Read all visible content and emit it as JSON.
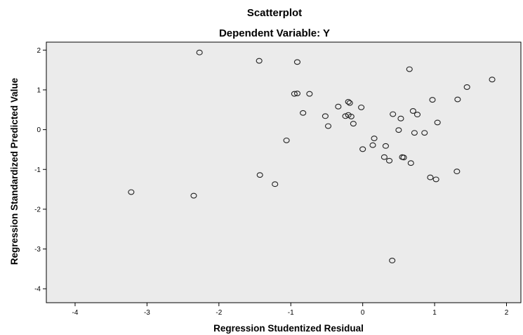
{
  "chart_data": {
    "type": "scatter",
    "title": "Scatterplot",
    "subtitle": "Dependent Variable: Y",
    "xlabel": "Regression Studentized Residual",
    "ylabel": "Regression Standardized Predicted Value",
    "xlim": [
      -4.4,
      2.2
    ],
    "ylim": [
      -4.35,
      2.2
    ],
    "xticks": [
      -4,
      -3,
      -2,
      -1,
      0,
      1,
      2
    ],
    "yticks": [
      2,
      1,
      0,
      -1,
      -2,
      -3,
      -4
    ],
    "grid": false,
    "legend": "none",
    "colors": {
      "plot_background": "#ebebeb",
      "marker_stroke": "#222222",
      "axis": "#000000"
    },
    "x": [
      -2.27,
      -1.44,
      -0.91,
      0.65,
      1.8,
      1.45,
      1.32,
      0.97,
      -0.95,
      -0.91,
      -0.74,
      -0.2,
      -0.18,
      -0.02,
      -0.83,
      -0.34,
      -0.52,
      -0.48,
      -0.24,
      -0.2,
      -0.16,
      -0.13,
      0.42,
      0.53,
      0.7,
      0.76,
      1.04,
      0.5,
      0.72,
      0.86,
      0.16,
      0.14,
      0.0,
      0.32,
      0.3,
      0.37,
      0.55,
      0.57,
      0.67,
      -1.06,
      -3.22,
      -2.35,
      -1.43,
      -1.22,
      0.94,
      1.02,
      1.31,
      0.41
    ],
    "y": [
      1.94,
      1.73,
      1.7,
      1.52,
      1.26,
      1.07,
      0.76,
      0.75,
      0.9,
      0.91,
      0.9,
      0.7,
      0.67,
      0.56,
      0.42,
      0.58,
      0.34,
      0.09,
      0.34,
      0.37,
      0.33,
      0.15,
      0.39,
      0.28,
      0.47,
      0.38,
      0.18,
      -0.01,
      -0.08,
      -0.08,
      -0.22,
      -0.39,
      -0.49,
      -0.41,
      -0.69,
      -0.78,
      -0.69,
      -0.7,
      -0.84,
      -0.27,
      -1.57,
      -1.66,
      -1.14,
      -1.37,
      -1.2,
      -1.25,
      -1.05,
      -3.29
    ]
  }
}
